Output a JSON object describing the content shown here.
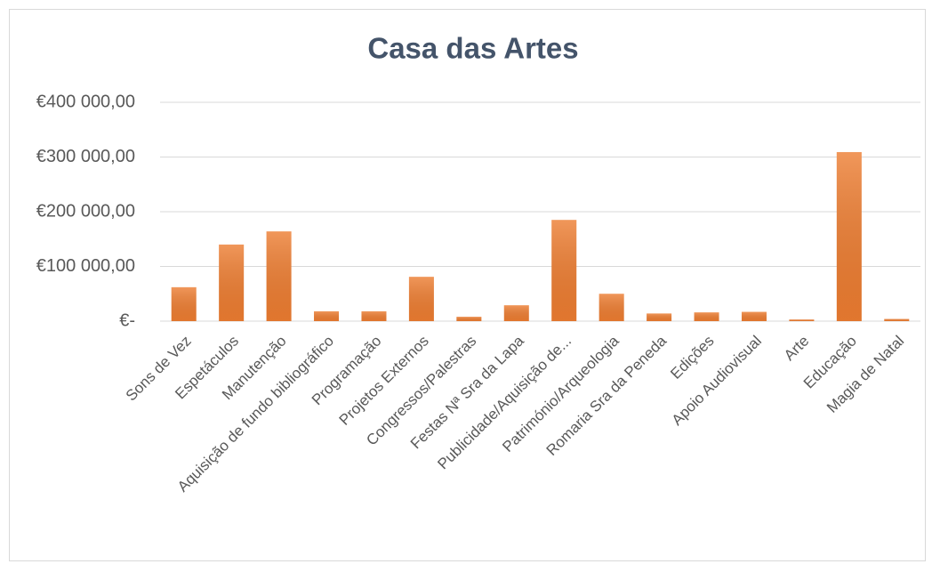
{
  "chart_data": {
    "type": "bar",
    "title": "Casa das Artes",
    "categories": [
      "Sons de Vez",
      "Espetáculos",
      "Manutenção",
      "Aquisição de fundo bibliográfico",
      "Programação",
      "Projetos Externos",
      "Congressos/Palestras",
      "Festas Nª Sra da Lapa",
      "Publicidade/Aquisição de...",
      "Património/Arqueologia",
      "Romaria Sra da Peneda",
      "Edições",
      "Apoio Audiovisual",
      "Arte",
      "Educação",
      "Magia de Natal"
    ],
    "values": [
      62000,
      140000,
      164000,
      18000,
      18000,
      81000,
      8000,
      29000,
      185000,
      50000,
      14000,
      16000,
      17000,
      3000,
      309000,
      4000
    ],
    "color": "#ed7d31",
    "ylim": [
      0,
      400000
    ],
    "yticks": [
      {
        "value": 0,
        "label": "€-"
      },
      {
        "value": 100000,
        "label": "€100 000,00"
      },
      {
        "value": 200000,
        "label": "€200 000,00"
      },
      {
        "value": 300000,
        "label": "€300 000,00"
      },
      {
        "value": 400000,
        "label": "€400 000,00"
      }
    ],
    "grid": true
  }
}
